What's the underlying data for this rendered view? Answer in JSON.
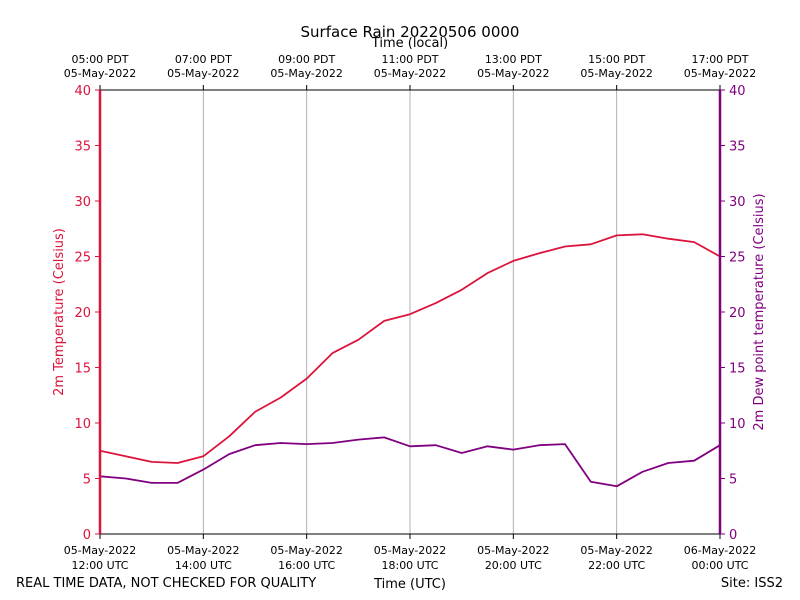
{
  "chart_data": {
    "type": "line",
    "title": "Surface Rain 20220506 0000",
    "xlabel": "Time (UTC)",
    "x2label": "Time (local)",
    "ylabel": "2m Temperature (Celsius)",
    "y2label": "2m Dew point temperature (Celsius)",
    "xlim_hours_utc": [
      "2022-05-05 12:00",
      "2022-05-06 00:00"
    ],
    "ylim": [
      0,
      40
    ],
    "y2lim": [
      0,
      40
    ],
    "yticks": [
      0,
      5,
      10,
      15,
      20,
      25,
      30,
      35,
      40
    ],
    "grid": "vertical lines at x ticks",
    "x_ticks_utc": [
      {
        "line1": "05-May-2022",
        "line2": "12:00 UTC"
      },
      {
        "line1": "05-May-2022",
        "line2": "14:00 UTC"
      },
      {
        "line1": "05-May-2022",
        "line2": "16:00 UTC"
      },
      {
        "line1": "05-May-2022",
        "line2": "18:00 UTC"
      },
      {
        "line1": "05-May-2022",
        "line2": "20:00 UTC"
      },
      {
        "line1": "05-May-2022",
        "line2": "22:00 UTC"
      },
      {
        "line1": "06-May-2022",
        "line2": "00:00 UTC"
      }
    ],
    "x_ticks_local": [
      {
        "line1": "05:00 PDT",
        "line2": "05-May-2022"
      },
      {
        "line1": "07:00 PDT",
        "line2": "05-May-2022"
      },
      {
        "line1": "09:00 PDT",
        "line2": "05-May-2022"
      },
      {
        "line1": "11:00 PDT",
        "line2": "05-May-2022"
      },
      {
        "line1": "13:00 PDT",
        "line2": "05-May-2022"
      },
      {
        "line1": "15:00 PDT",
        "line2": "05-May-2022"
      },
      {
        "line1": "17:00 PDT",
        "line2": "05-May-2022"
      }
    ],
    "x_utc": [
      "12:00",
      "12:30",
      "13:00",
      "13:30",
      "14:00",
      "14:30",
      "15:00",
      "15:30",
      "16:00",
      "16:30",
      "17:00",
      "17:30",
      "18:00",
      "18:30",
      "19:00",
      "19:30",
      "20:00",
      "20:30",
      "21:00",
      "21:30",
      "22:00",
      "22:30",
      "23:00",
      "23:30",
      "00:00"
    ],
    "series": [
      {
        "name": "2m Temperature",
        "color": "#dc143c",
        "axis": "left",
        "values": [
          7.5,
          7.0,
          6.5,
          6.4,
          7.0,
          8.8,
          11.0,
          12.3,
          14.0,
          16.3,
          17.5,
          19.2,
          19.8,
          20.8,
          22.0,
          23.5,
          24.6,
          25.3,
          25.9,
          26.1,
          26.9,
          27.0,
          26.6,
          26.3,
          25.0
        ]
      },
      {
        "name": "2m Dew point temperature",
        "color": "#800080",
        "axis": "right",
        "values": [
          5.2,
          5.0,
          4.6,
          4.6,
          5.8,
          7.2,
          8.0,
          8.2,
          8.1,
          8.2,
          8.5,
          8.7,
          7.9,
          8.0,
          7.3,
          7.9,
          7.6,
          8.0,
          8.1,
          4.7,
          4.3,
          5.6,
          6.4,
          6.6,
          8.0
        ]
      }
    ]
  },
  "footer": {
    "disclaimer": "REAL TIME DATA, NOT CHECKED FOR QUALITY",
    "site": "Site: ISS2"
  },
  "colors": {
    "temperature": "#dc143c",
    "dewpoint": "#800080",
    "grid": "#b0b0b0"
  }
}
